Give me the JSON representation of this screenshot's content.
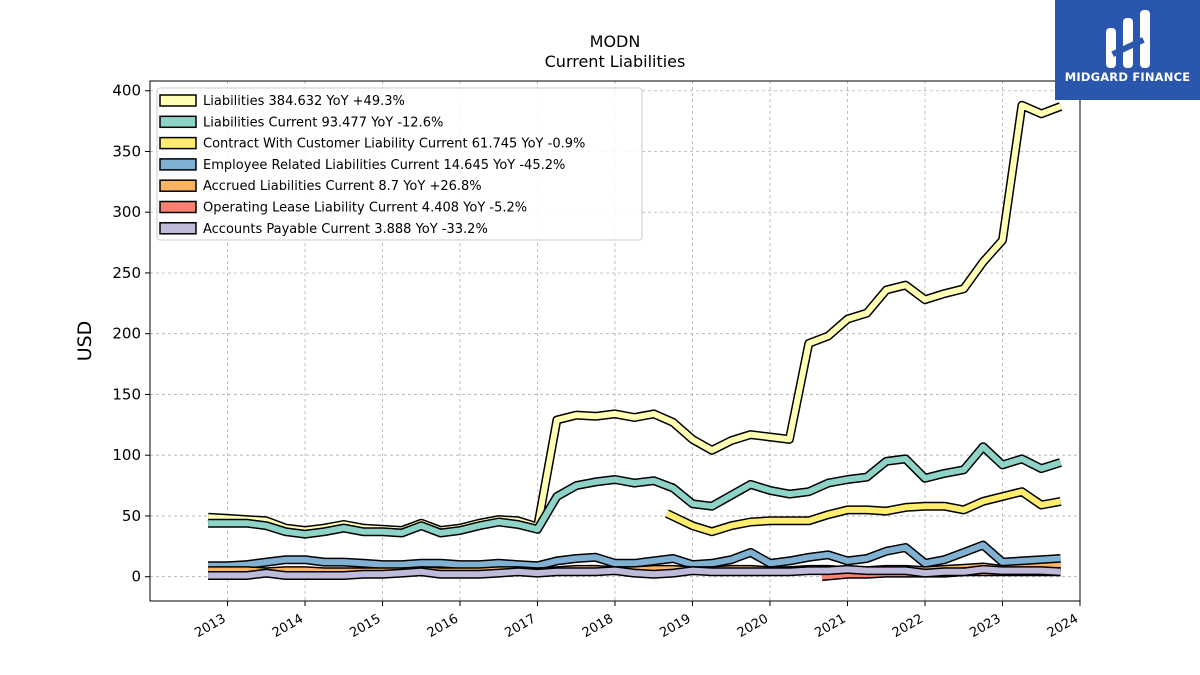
{
  "brand": {
    "name": "MIDGARD FINANCE"
  },
  "chart_data": {
    "type": "area",
    "title": "MODN",
    "subtitle": "Current  Liabilities",
    "ylabel": "USD",
    "xlabel": "",
    "ylim": [
      -20,
      408
    ],
    "xlim": [
      2012.0,
      2024.0
    ],
    "yticks": [
      0,
      50,
      100,
      150,
      200,
      250,
      300,
      350,
      400
    ],
    "xticks": [
      "2013",
      "2014",
      "2015",
      "2016",
      "2017",
      "2018",
      "2019",
      "2020",
      "2021",
      "2022",
      "2023",
      "2024"
    ],
    "grid": true,
    "legend_position": "top-left",
    "series": [
      {
        "name": "Liabilities",
        "legend": "Liabilities  384.632 YoY +49.3%",
        "color": "#ffffb3",
        "x": [
          2012.75,
          2013.0,
          2013.25,
          2013.5,
          2013.75,
          2014.0,
          2014.25,
          2014.5,
          2014.75,
          2015.0,
          2015.25,
          2015.5,
          2015.75,
          2016.0,
          2016.25,
          2016.5,
          2016.75,
          2017.0,
          2017.25,
          2017.5,
          2017.75,
          2018.0,
          2018.25,
          2018.5,
          2018.75,
          2019.0,
          2019.25,
          2019.5,
          2019.75,
          2020.0,
          2020.25,
          2020.5,
          2020.75,
          2021.0,
          2021.25,
          2021.5,
          2021.75,
          2022.0,
          2022.25,
          2022.5,
          2022.75,
          2023.0,
          2023.25,
          2023.5,
          2023.75
        ],
        "values": [
          49,
          48,
          47,
          46,
          40,
          38,
          40,
          43,
          40,
          39,
          38,
          44,
          38,
          40,
          44,
          47,
          46,
          41,
          129,
          133,
          132,
          134,
          131,
          134,
          127,
          113,
          104,
          112,
          117,
          115,
          113,
          192,
          198,
          212,
          217,
          236,
          240,
          228,
          233,
          237,
          259,
          277,
          388,
          381,
          387
        ]
      },
      {
        "name": "Liabilities Current",
        "legend": "Liabilities Current  93.477 YoY -12.6%",
        "color": "#8dd3c7",
        "x": [
          2012.75,
          2013.0,
          2013.25,
          2013.5,
          2013.75,
          2014.0,
          2014.25,
          2014.5,
          2014.75,
          2015.0,
          2015.25,
          2015.5,
          2015.75,
          2016.0,
          2016.25,
          2016.5,
          2016.75,
          2017.0,
          2017.25,
          2017.5,
          2017.75,
          2018.0,
          2018.25,
          2018.5,
          2018.75,
          2019.0,
          2019.25,
          2019.5,
          2019.75,
          2020.0,
          2020.25,
          2020.5,
          2020.75,
          2021.0,
          2021.25,
          2021.5,
          2021.75,
          2022.0,
          2022.25,
          2022.5,
          2022.75,
          2023.0,
          2023.25,
          2023.5,
          2023.75
        ],
        "values": [
          44,
          44,
          44,
          42,
          37,
          35,
          37,
          40,
          37,
          37,
          36,
          42,
          36,
          38,
          42,
          45,
          43,
          39,
          66,
          75,
          78,
          80,
          77,
          79,
          73,
          60,
          58,
          67,
          76,
          71,
          68,
          70,
          77,
          80,
          82,
          95,
          97,
          81,
          85,
          88,
          107,
          92,
          97,
          89,
          94
        ]
      },
      {
        "name": "Contract With Customer Liability Current",
        "legend": "Contract With Customer Liability Current  61.745 YoY -0.9%",
        "color": "#ffed6f",
        "x": [
          2018.67,
          2019.0,
          2019.25,
          2019.5,
          2019.75,
          2020.0,
          2020.25,
          2020.5,
          2020.75,
          2021.0,
          2021.25,
          2021.5,
          2021.75,
          2022.0,
          2022.25,
          2022.5,
          2022.75,
          2023.0,
          2023.25,
          2023.5,
          2023.75
        ],
        "values": [
          52,
          42,
          37,
          42,
          45,
          46,
          46,
          46,
          51,
          55,
          55,
          54,
          57,
          58,
          58,
          55,
          62,
          66,
          70,
          59,
          62
        ]
      },
      {
        "name": "Employee Related Liabilities Current",
        "legend": "Employee Related Liabilities Current  14.645 YoY -45.2%",
        "color": "#80b1d3",
        "x": [
          2012.75,
          2013.0,
          2013.25,
          2013.5,
          2013.75,
          2014.0,
          2014.25,
          2014.5,
          2014.75,
          2015.0,
          2015.25,
          2015.5,
          2015.75,
          2016.0,
          2016.25,
          2016.5,
          2016.75,
          2017.0,
          2017.25,
          2017.5,
          2017.75,
          2018.0,
          2018.25,
          2018.5,
          2018.75,
          2019.0,
          2019.25,
          2019.5,
          2019.75,
          2020.0,
          2020.25,
          2020.5,
          2020.75,
          2021.0,
          2021.25,
          2021.5,
          2021.75,
          2022.0,
          2022.25,
          2022.5,
          2022.75,
          2023.0,
          2023.25,
          2023.5,
          2023.75
        ],
        "values": [
          9,
          9,
          10,
          12,
          14,
          14,
          12,
          12,
          11,
          10,
          10,
          11,
          11,
          10,
          10,
          11,
          10,
          9,
          13,
          15,
          16,
          11,
          11,
          13,
          15,
          10,
          11,
          14,
          20,
          11,
          13,
          16,
          18,
          13,
          15,
          21,
          24,
          11,
          14,
          20,
          26,
          12,
          13,
          14,
          15
        ]
      },
      {
        "name": "Accrued Liabilities Current",
        "legend": "Accrued Liabilities Current  8.7 YoY +26.8%",
        "color": "#fdb462",
        "x": [
          2012.75,
          2013.0,
          2013.25,
          2013.5,
          2013.75,
          2014.0,
          2014.25,
          2014.5,
          2014.75,
          2015.0,
          2015.25,
          2015.5,
          2015.75,
          2016.0,
          2016.25,
          2016.5,
          2016.75,
          2017.0,
          2017.25,
          2017.5,
          2017.75,
          2018.0,
          2018.25,
          2018.5,
          2018.75,
          2019.0,
          2019.25,
          2019.5,
          2019.75,
          2020.0,
          2020.25,
          2020.5,
          2020.75,
          2021.0,
          2021.25,
          2021.5,
          2021.75,
          2022.0,
          2022.25,
          2022.5,
          2022.75,
          2023.0,
          2023.25,
          2023.5,
          2023.75
        ],
        "values": [
          5,
          5,
          5,
          4,
          5,
          5,
          4,
          4,
          4,
          4,
          4,
          5,
          4,
          4,
          4,
          5,
          5,
          4,
          5,
          6,
          6,
          5,
          5,
          6,
          6,
          5,
          5,
          6,
          6,
          5,
          5,
          6,
          6,
          5,
          5,
          6,
          6,
          5,
          6,
          7,
          8,
          6,
          7,
          8,
          9
        ]
      },
      {
        "name": "Operating Lease Liability Current",
        "legend": "Operating Lease Liability Current  4.408 YoY -5.2%",
        "color": "#fb8072",
        "x": [
          2020.67,
          2021.0,
          2021.25,
          2021.5,
          2021.75,
          2022.0,
          2022.25,
          2022.5,
          2022.75,
          2023.0,
          2023.25,
          2023.5,
          2023.75
        ],
        "values": [
          0,
          2,
          2,
          3,
          3,
          3,
          3,
          4,
          4,
          4,
          4,
          4,
          4
        ]
      },
      {
        "name": "Accounts Payable Current",
        "legend": "Accounts Payable Current  3.888 YoY -33.2%",
        "color": "#bebada",
        "x": [
          2012.75,
          2013.0,
          2013.25,
          2013.5,
          2013.75,
          2014.0,
          2014.25,
          2014.5,
          2014.75,
          2015.0,
          2015.25,
          2015.5,
          2015.75,
          2016.0,
          2016.25,
          2016.5,
          2016.75,
          2017.0,
          2017.25,
          2017.5,
          2017.75,
          2018.0,
          2018.25,
          2018.5,
          2018.75,
          2019.0,
          2019.25,
          2019.5,
          2019.75,
          2020.0,
          2020.25,
          2020.5,
          2020.75,
          2021.0,
          2021.25,
          2021.5,
          2021.75,
          2022.0,
          2022.25,
          2022.5,
          2022.75,
          2023.0,
          2023.25,
          2023.5,
          2023.75
        ],
        "values": [
          1,
          1,
          1,
          3,
          1,
          1,
          1,
          1,
          2,
          2,
          3,
          4,
          2,
          2,
          2,
          3,
          4,
          3,
          4,
          4,
          4,
          5,
          3,
          2,
          3,
          5,
          4,
          4,
          4,
          4,
          4,
          5,
          5,
          6,
          5,
          5,
          5,
          3,
          4,
          4,
          6,
          5,
          5,
          5,
          4
        ]
      }
    ]
  }
}
